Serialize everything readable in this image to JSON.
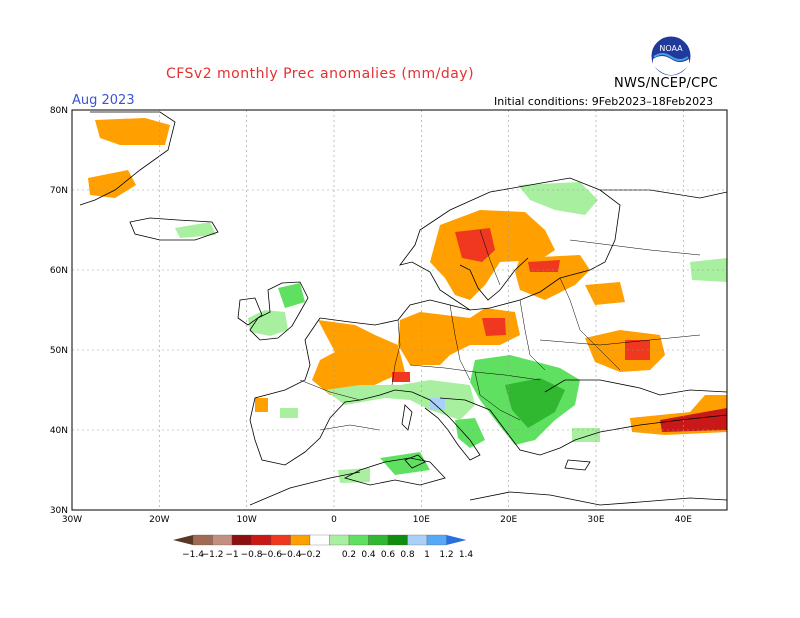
{
  "header": {
    "title": "CFSv2 monthly Prec anomalies (mm/day)",
    "month": "Aug 2023",
    "initial_conditions": "Initial conditions: 9Feb2023–18Feb2023",
    "organization": "NWS/NCEP/CPC",
    "logo_text": "NOAA"
  },
  "map": {
    "region": "Europe",
    "lon_range": [
      -30,
      45
    ],
    "lat_range": [
      30,
      80
    ],
    "lat_ticks": [
      "30N",
      "40N",
      "50N",
      "60N",
      "70N",
      "80N"
    ],
    "lon_ticks": [
      "30W",
      "20W",
      "10W",
      "0",
      "10E",
      "20E",
      "30E",
      "40E"
    ],
    "anomaly_areas": [
      {
        "area": "Iceland north coast / Greenland fringe",
        "level": -0.4
      },
      {
        "area": "Norway-Sweden",
        "level": -0.4
      },
      {
        "area": "central Scandinavia core",
        "level": -0.6
      },
      {
        "area": "Finland-Baltic",
        "level": -0.4
      },
      {
        "area": "France-Benelux-Germany",
        "level": -0.4
      },
      {
        "area": "Poland",
        "level": -0.4
      },
      {
        "area": "western Russia",
        "level": -0.4
      },
      {
        "area": "Caucasus",
        "level": -0.6
      },
      {
        "area": "Balkans",
        "level": 0.4
      },
      {
        "area": "Balkans core",
        "level": 0.6
      },
      {
        "area": "northern Italy / Alps",
        "level": 0.2
      },
      {
        "area": "British Isles",
        "level": 0.2
      },
      {
        "area": "Tunisia",
        "level": 0.4
      }
    ]
  },
  "colorbar": {
    "labels": [
      "−1.4",
      "−1.2",
      "−1",
      "−0.8",
      "−0.6",
      "−0.4",
      "−0.2",
      "0.2",
      "0.4",
      "0.6",
      "0.8",
      "1",
      "1.2",
      "1.4"
    ],
    "colors": [
      "#5a3624",
      "#a06a55",
      "#c48f80",
      "#8c1010",
      "#c81818",
      "#f03820",
      "#ffa000",
      "#ffffff",
      "#a8f0a0",
      "#60e060",
      "#30b830",
      "#108c10",
      "#a8d0f8",
      "#58a8f8",
      "#2870e0"
    ]
  }
}
